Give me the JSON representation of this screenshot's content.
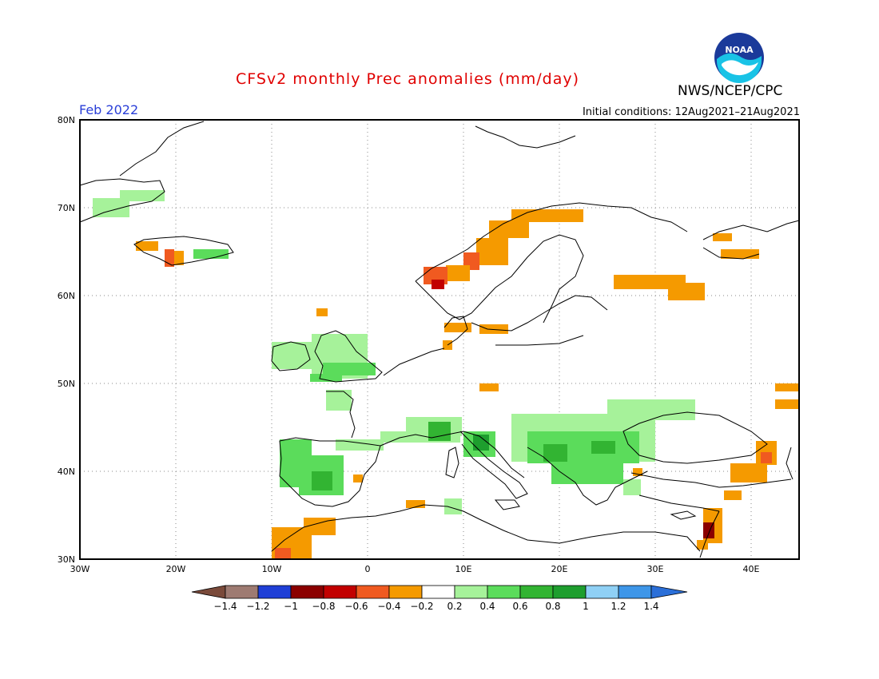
{
  "header": {
    "title": "CFSv2 monthly Prec anomalies (mm/day)",
    "agency": "NWS/NCEP/CPC",
    "logo_text": "NOAA",
    "month": "Feb 2022",
    "initial_conditions": "Initial conditions: 12Aug2021–21Aug2021"
  },
  "map": {
    "projection": "lat-lon",
    "lon_range": [
      -30,
      45
    ],
    "lat_range": [
      30,
      80
    ],
    "lat_ticks": [
      "80N",
      "70N",
      "60N",
      "50N",
      "40N",
      "30N"
    ],
    "lon_ticks": [
      "30W",
      "20W",
      "10W",
      "0",
      "10E",
      "20E",
      "30E",
      "40E"
    ],
    "grid": "dotted",
    "anomaly_regions": [
      {
        "area": "Greenland east coast",
        "category": "0.2 to 0.4"
      },
      {
        "area": "Iceland west",
        "category": "-0.6 to -0.8"
      },
      {
        "area": "Iceland east",
        "category": "0.4 to 0.6"
      },
      {
        "area": "Norway coast",
        "category": "-0.2 to -0.6"
      },
      {
        "area": "Southern Scandinavia",
        "category": "-0.2 to -0.4"
      },
      {
        "area": "Northwest Russia",
        "category": "-0.2 to -0.4"
      },
      {
        "area": "Ireland and Britain",
        "category": "0.2 to 0.4"
      },
      {
        "area": "Iberian Peninsula",
        "category": "0.2 to 0.6"
      },
      {
        "area": "Southern France and Alps",
        "category": "0.2 to 0.8"
      },
      {
        "area": "Italy",
        "category": "0.4 to 0.8"
      },
      {
        "area": "Balkans",
        "category": "0.2 to 0.8"
      },
      {
        "area": "Morocco",
        "category": "-0.2 to -0.8"
      },
      {
        "area": "Eastern Turkey",
        "category": "-0.2 to -0.6"
      },
      {
        "area": "Levant",
        "category": "-0.2 to -1"
      }
    ]
  },
  "colorbar": {
    "labels": [
      "−1.4",
      "−1.2",
      "−1",
      "−0.8",
      "−0.6",
      "−0.4",
      "−0.2",
      "0.2",
      "0.4",
      "0.6",
      "0.8",
      "1",
      "1.2",
      "1.4"
    ],
    "colors": {
      "lt_neg_1_4": "#7a4a3a",
      "neg_1_4": "#9e7b72",
      "neg_1_2": "#1f3fd6",
      "neg_1": "#8b0000",
      "neg_0_8": "#c20000",
      "neg_0_6": "#f05a20",
      "neg_0_4": "#f59a00",
      "neutral": "#ffffff",
      "pos_0_2": "#a6f29a",
      "pos_0_4": "#5bdc5b",
      "pos_0_6": "#32b432",
      "pos_0_8": "#1e9e2e",
      "pos_1": "#8fd0f5",
      "pos_1_2": "#3e96e8",
      "gt_1_4": "#2b6fd8"
    }
  }
}
